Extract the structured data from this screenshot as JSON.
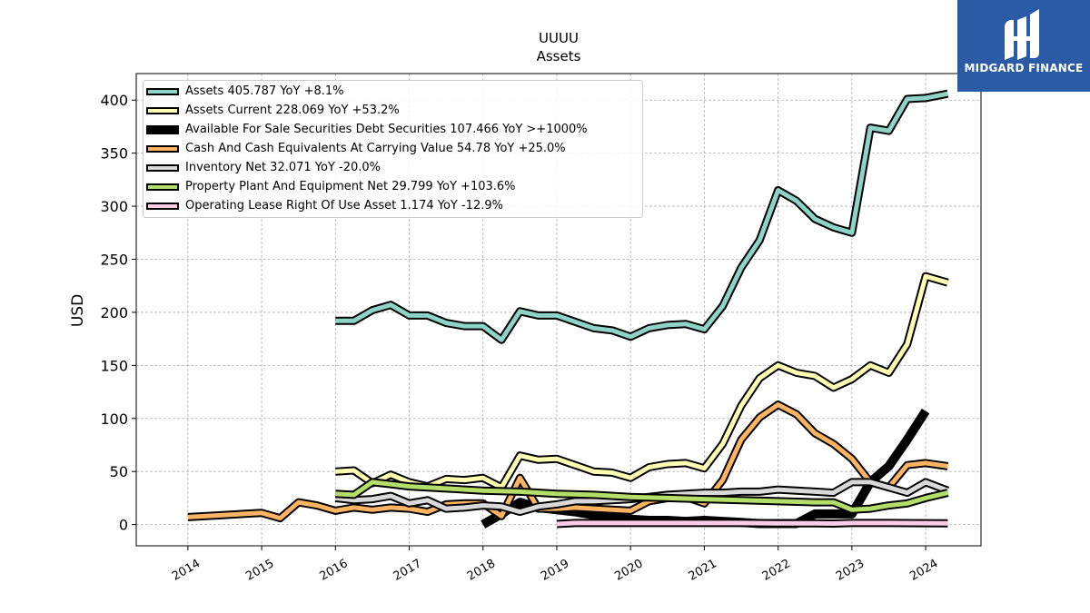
{
  "brand": {
    "name": "MIDGARD FINANCE",
    "color": "#2b5aa6"
  },
  "chart_data": {
    "type": "line",
    "title": "UUUU",
    "subtitle": "Assets",
    "xlabel": "",
    "ylabel": "USD",
    "ylim": [
      -20,
      425
    ],
    "xlim": [
      2013.3,
      2024.75
    ],
    "x_ticks": [
      2014,
      2015,
      2016,
      2017,
      2018,
      2019,
      2020,
      2021,
      2022,
      2023,
      2024
    ],
    "x_tick_labels": [
      "2014",
      "2015",
      "2016",
      "2017",
      "2018",
      "2019",
      "2020",
      "2021",
      "2022",
      "2023",
      "2024"
    ],
    "y_ticks": [
      0,
      50,
      100,
      150,
      200,
      250,
      300,
      350,
      400
    ],
    "y_tick_labels": [
      "0",
      "50",
      "100",
      "150",
      "200",
      "250",
      "300",
      "350",
      "400"
    ],
    "grid": true,
    "legend_position": "top-left",
    "series": [
      {
        "name": "Assets",
        "legend_label": "Assets  405.787 YoY +8.1%",
        "color": "#8dd3c7",
        "style": "outlined",
        "x": [
          2016.0,
          2016.25,
          2016.5,
          2016.75,
          2017.0,
          2017.25,
          2017.5,
          2017.75,
          2018.0,
          2018.25,
          2018.5,
          2018.75,
          2019.0,
          2019.25,
          2019.5,
          2019.75,
          2020.0,
          2020.25,
          2020.5,
          2020.75,
          2021.0,
          2021.25,
          2021.5,
          2021.75,
          2022.0,
          2022.25,
          2022.5,
          2022.75,
          2023.0,
          2023.25,
          2023.5,
          2023.75,
          2024.0,
          2024.3
        ],
        "y": [
          192,
          192,
          202,
          207,
          197,
          197,
          190,
          187,
          187,
          174,
          201,
          197,
          197,
          191,
          185,
          183,
          177,
          185,
          188,
          189,
          184,
          206,
          242,
          268,
          315,
          305,
          288,
          280,
          275,
          374,
          371,
          401,
          402,
          406
        ]
      },
      {
        "name": "Assets Current",
        "legend_label": "Assets Current  228.069 YoY +53.2%",
        "color": "#ffffb3",
        "style": "outlined",
        "x": [
          2016.0,
          2016.25,
          2016.5,
          2016.75,
          2017.0,
          2017.25,
          2017.5,
          2017.75,
          2018.0,
          2018.25,
          2018.5,
          2018.75,
          2019.0,
          2019.25,
          2019.5,
          2019.75,
          2020.0,
          2020.25,
          2020.5,
          2020.75,
          2021.0,
          2021.25,
          2021.5,
          2021.75,
          2022.0,
          2022.25,
          2022.5,
          2022.75,
          2023.0,
          2023.25,
          2023.5,
          2023.75,
          2024.0,
          2024.3
        ],
        "y": [
          50,
          51,
          39,
          47,
          40,
          36,
          43,
          42,
          44,
          35,
          65,
          61,
          62,
          56,
          50,
          49,
          44,
          54,
          57,
          58,
          53,
          76,
          112,
          138,
          150,
          143,
          140,
          129,
          137,
          150,
          143,
          170,
          234,
          228
        ]
      },
      {
        "name": "Available For Sale Securities Debt Securities",
        "legend_label": "Available For Sale Securities Debt Securities  107.466 YoY >+1000%",
        "color": "#000000",
        "style": "thick",
        "x": [
          2018.0,
          2018.25,
          2018.5,
          2018.75,
          2019.0,
          2019.25,
          2019.5,
          2019.75,
          2020.0,
          2020.25,
          2020.5,
          2020.75,
          2021.0,
          2021.25,
          2021.5,
          2021.75,
          2022.0,
          2022.25,
          2022.5,
          2022.75,
          2023.0,
          2023.25,
          2023.5,
          2023.75,
          2024.0
        ],
        "y": [
          0,
          10,
          21,
          16,
          14,
          12,
          9,
          7,
          5,
          4,
          4,
          3,
          4,
          3,
          2,
          1,
          1,
          1,
          10,
          10,
          10,
          40,
          55,
          80,
          107
        ]
      },
      {
        "name": "Cash And Cash Equivalents At Carrying Value",
        "legend_label": "Cash And Cash Equivalents At Carrying Value  54.78 YoY +25.0%",
        "color": "#fdb462",
        "style": "outlined",
        "x": [
          2014.0,
          2014.25,
          2014.5,
          2014.75,
          2015.0,
          2015.25,
          2015.5,
          2015.75,
          2016.0,
          2016.25,
          2016.5,
          2016.75,
          2017.0,
          2017.25,
          2017.5,
          2017.75,
          2018.0,
          2018.25,
          2018.5,
          2018.75,
          2019.0,
          2019.25,
          2019.5,
          2019.75,
          2020.0,
          2020.25,
          2020.5,
          2020.75,
          2021.0,
          2021.25,
          2021.5,
          2021.75,
          2022.0,
          2022.25,
          2022.5,
          2022.75,
          2023.0,
          2023.25,
          2023.5,
          2023.75,
          2024.0,
          2024.3
        ],
        "y": [
          7,
          8,
          9,
          10,
          11,
          6,
          21,
          18,
          13,
          16,
          14,
          16,
          15,
          12,
          19,
          20,
          20,
          8,
          44,
          15,
          15,
          16,
          15,
          14,
          13,
          22,
          25,
          26,
          20,
          42,
          80,
          101,
          113,
          104,
          86,
          76,
          62,
          40,
          35,
          56,
          58,
          55
        ]
      },
      {
        "name": "Inventory Net",
        "legend_label": "Inventory Net  32.071 YoY -20.0%",
        "color": "#d9d9d9",
        "style": "outlined",
        "x": [
          2016.0,
          2016.25,
          2016.5,
          2016.75,
          2017.0,
          2017.25,
          2017.5,
          2017.75,
          2018.0,
          2018.25,
          2018.5,
          2018.75,
          2019.0,
          2019.25,
          2019.5,
          2019.75,
          2020.0,
          2020.25,
          2020.5,
          2020.75,
          2021.0,
          2021.25,
          2021.5,
          2021.75,
          2022.0,
          2022.25,
          2022.5,
          2022.75,
          2023.0,
          2023.25,
          2023.5,
          2023.75,
          2024.0,
          2024.3
        ],
        "y": [
          25,
          23,
          24,
          27,
          20,
          23,
          15,
          16,
          18,
          17,
          12,
          17,
          19,
          22,
          22,
          23,
          24,
          26,
          28,
          29,
          30,
          30,
          31,
          31,
          33,
          32,
          31,
          30,
          40,
          40,
          35,
          30,
          40,
          32
        ]
      },
      {
        "name": "Property Plant And Equipment Net",
        "legend_label": "Property Plant And Equipment Net  29.799 YoY +103.6%",
        "color": "#b3de69",
        "style": "outlined",
        "x": [
          2016.0,
          2016.25,
          2016.5,
          2016.75,
          2017.0,
          2017.5,
          2018.0,
          2018.5,
          2019.0,
          2019.5,
          2020.0,
          2020.5,
          2021.0,
          2021.5,
          2022.0,
          2022.5,
          2022.75,
          2023.0,
          2023.25,
          2023.5,
          2023.75,
          2024.0,
          2024.3
        ],
        "y": [
          29,
          28,
          40,
          38,
          36,
          34,
          32,
          31,
          29,
          28,
          26,
          25,
          24,
          23,
          22,
          21,
          21,
          14,
          15,
          18,
          20,
          25,
          30
        ]
      },
      {
        "name": "Operating Lease Right Of Use Asset",
        "legend_label": "Operating Lease Right Of Use Asset  1.174 YoY -12.9%",
        "color": "#fccde5",
        "style": "outlined",
        "x": [
          2019.0,
          2019.25,
          2019.5,
          2020.0,
          2020.5,
          2021.0,
          2021.5,
          2022.0,
          2022.5,
          2022.75,
          2023.0,
          2023.5,
          2024.0,
          2024.3
        ],
        "y": [
          0.5,
          1.5,
          1.5,
          1.5,
          1.5,
          1.5,
          1.5,
          1.2,
          1.2,
          1.0,
          1.5,
          1.5,
          1.3,
          1.2
        ]
      }
    ]
  }
}
